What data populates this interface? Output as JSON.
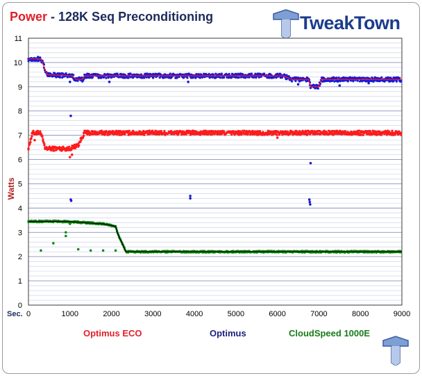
{
  "title": {
    "prefix": "Power",
    "rest": " - 128K Seq Preconditioning"
  },
  "logo": {
    "text": "TweakTown",
    "icon": "tweaktown-t-icon"
  },
  "chart_data": {
    "type": "scatter",
    "title": "Power - 128K Seq Preconditioning",
    "xlabel": "Sec.",
    "ylabel": "Watts",
    "xlim": [
      0,
      9000
    ],
    "ylim": [
      0,
      11
    ],
    "x_ticks": [
      "0",
      "1000",
      "2000",
      "3000",
      "4000",
      "5000",
      "6000",
      "7000",
      "8000",
      "9000"
    ],
    "y_ticks": [
      "0",
      "1",
      "2",
      "3",
      "4",
      "5",
      "6",
      "7",
      "8",
      "9",
      "10",
      "11"
    ],
    "grid": true,
    "minor_grid_step": 0.2,
    "legend_placement": "bottom",
    "series": [
      {
        "name": "Optimus ECO",
        "color": "#ff1a1a",
        "avg_color": "#ff1a1a",
        "trend": [
          [
            0,
            6.5
          ],
          [
            100,
            7.1
          ],
          [
            300,
            7.1
          ],
          [
            400,
            6.45
          ],
          [
            1000,
            6.45
          ],
          [
            1200,
            6.6
          ],
          [
            1350,
            7.1
          ],
          [
            9000,
            7.1
          ]
        ],
        "outliers": [
          [
            150,
            6.8
          ],
          [
            1000,
            6.1
          ],
          [
            1050,
            6.2
          ],
          [
            6000,
            6.9
          ]
        ]
      },
      {
        "name": "Optimus",
        "color": "#1a1ad6",
        "avg_color": "#ff1a1a",
        "trend": [
          [
            0,
            10.15
          ],
          [
            300,
            10.15
          ],
          [
            450,
            9.5
          ],
          [
            1050,
            9.45
          ],
          [
            1150,
            9.3
          ],
          [
            1300,
            9.3
          ],
          [
            1350,
            9.45
          ],
          [
            6150,
            9.45
          ],
          [
            6350,
            9.3
          ],
          [
            6750,
            9.3
          ],
          [
            6800,
            9.0
          ],
          [
            7000,
            9.0
          ],
          [
            7050,
            9.3
          ],
          [
            9000,
            9.3
          ]
        ],
        "outliers": [
          [
            1020,
            7.8
          ],
          [
            1020,
            4.35
          ],
          [
            1030,
            4.3
          ],
          [
            3900,
            4.5
          ],
          [
            3900,
            4.4
          ],
          [
            6800,
            5.85
          ],
          [
            6770,
            4.35
          ],
          [
            6780,
            4.25
          ],
          [
            6790,
            4.15
          ],
          [
            1000,
            9.2
          ],
          [
            1950,
            9.2
          ],
          [
            3850,
            9.2
          ],
          [
            6500,
            9.1
          ],
          [
            7500,
            9.05
          ],
          [
            8200,
            9.15
          ]
        ]
      },
      {
        "name": "CloudSpeed 1000E",
        "color": "#128a12",
        "avg_color": "#000000",
        "trend": [
          [
            0,
            3.45
          ],
          [
            900,
            3.45
          ],
          [
            1800,
            3.35
          ],
          [
            2100,
            3.25
          ],
          [
            2150,
            2.95
          ],
          [
            2350,
            2.2
          ],
          [
            9000,
            2.2
          ]
        ],
        "outliers": [
          [
            300,
            2.25
          ],
          [
            600,
            2.55
          ],
          [
            900,
            2.85
          ],
          [
            900,
            3.0
          ],
          [
            1200,
            2.3
          ],
          [
            1500,
            2.25
          ],
          [
            1800,
            2.25
          ],
          [
            1000,
            3.35
          ],
          [
            2100,
            2.25
          ]
        ]
      }
    ]
  }
}
